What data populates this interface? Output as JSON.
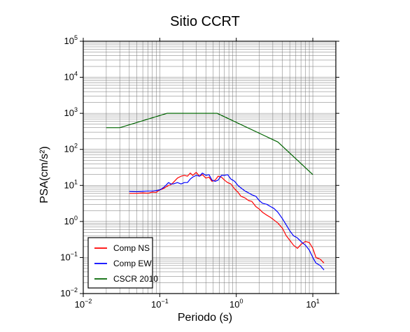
{
  "chart_data": {
    "type": "line",
    "title": "Sitio CCRT",
    "xlabel": "Periodo (s)",
    "ylabel": "PSA(cm/s²)",
    "xscale": "log",
    "yscale": "log",
    "xlim": [
      0.01,
      20
    ],
    "ylim": [
      0.01,
      100000
    ],
    "x_ticks": [
      {
        "value": 0.01,
        "base": "10",
        "exp": "−2"
      },
      {
        "value": 0.1,
        "base": "10",
        "exp": "−1"
      },
      {
        "value": 1,
        "base": "10",
        "exp": "0"
      },
      {
        "value": 10,
        "base": "10",
        "exp": "1"
      }
    ],
    "y_ticks": [
      {
        "value": 0.01,
        "base": "10",
        "exp": "−2"
      },
      {
        "value": 0.1,
        "base": "10",
        "exp": "−1"
      },
      {
        "value": 1,
        "base": "10",
        "exp": "0"
      },
      {
        "value": 10,
        "base": "10",
        "exp": "1"
      },
      {
        "value": 100,
        "base": "10",
        "exp": "2"
      },
      {
        "value": 1000,
        "base": "10",
        "exp": "3"
      },
      {
        "value": 10000,
        "base": "10",
        "exp": "4"
      },
      {
        "value": 100000,
        "base": "10",
        "exp": "5"
      }
    ],
    "grid": true,
    "legend_position": "bottom-left",
    "series": [
      {
        "name": "Comp NS",
        "color": "#ff0000",
        "x": [
          0.04,
          0.05,
          0.06,
          0.07,
          0.08,
          0.09,
          0.1,
          0.11,
          0.12,
          0.13,
          0.14,
          0.15,
          0.17,
          0.19,
          0.21,
          0.23,
          0.25,
          0.27,
          0.3,
          0.33,
          0.36,
          0.4,
          0.44,
          0.48,
          0.53,
          0.58,
          0.64,
          0.7,
          0.77,
          0.85,
          0.95,
          1.05,
          1.15,
          1.3,
          1.45,
          1.6,
          1.8,
          2.0,
          2.2,
          2.5,
          2.8,
          3.1,
          3.5,
          4.0,
          4.5,
          5.0,
          5.6,
          6.3,
          7.0,
          8.0,
          9.0,
          10.0,
          11.0,
          12.5,
          14.0
        ],
        "y": [
          6,
          6,
          6.2,
          6.1,
          6.5,
          6.4,
          7.5,
          8,
          9,
          10,
          10.5,
          12,
          16,
          18,
          19,
          18,
          22,
          19,
          23,
          18,
          20,
          16,
          17,
          13,
          14,
          18,
          17,
          14,
          12,
          11,
          8,
          6.5,
          5,
          4.5,
          3.8,
          3.6,
          2.6,
          2.2,
          1.8,
          1.5,
          1.3,
          1.1,
          0.9,
          0.65,
          0.4,
          0.3,
          0.22,
          0.18,
          0.23,
          0.28,
          0.26,
          0.18,
          0.1,
          0.09,
          0.07
        ]
      },
      {
        "name": "Comp EW",
        "color": "#0000ff",
        "x": [
          0.04,
          0.05,
          0.06,
          0.07,
          0.08,
          0.09,
          0.1,
          0.11,
          0.12,
          0.13,
          0.14,
          0.15,
          0.17,
          0.19,
          0.21,
          0.23,
          0.25,
          0.27,
          0.3,
          0.33,
          0.36,
          0.4,
          0.44,
          0.48,
          0.53,
          0.58,
          0.64,
          0.7,
          0.77,
          0.85,
          0.95,
          1.05,
          1.15,
          1.3,
          1.45,
          1.6,
          1.8,
          2.0,
          2.2,
          2.5,
          2.8,
          3.1,
          3.5,
          4.0,
          4.5,
          5.0,
          5.6,
          6.3,
          7.0,
          8.0,
          9.0,
          10.0,
          11.0,
          12.5,
          14.0
        ],
        "y": [
          6.8,
          6.7,
          6.9,
          7,
          7,
          7.2,
          7.5,
          8.5,
          10,
          12,
          11,
          11,
          12,
          11,
          12,
          12,
          15,
          17,
          19,
          18,
          22,
          19,
          20,
          14,
          13,
          14,
          19,
          19,
          20,
          15,
          13,
          10,
          8.5,
          7,
          6.2,
          5.5,
          5,
          3.8,
          3.2,
          3,
          2.6,
          2.3,
          1.8,
          1.2,
          0.8,
          0.55,
          0.4,
          0.35,
          0.28,
          0.22,
          0.16,
          0.1,
          0.07,
          0.06,
          0.045
        ]
      },
      {
        "name": "CSCR 2010",
        "color": "#006400",
        "x": [
          0.02,
          0.03,
          0.125,
          0.56,
          3.5,
          10.0
        ],
        "y": [
          400,
          400,
          1000,
          1000,
          160,
          20
        ]
      }
    ]
  }
}
